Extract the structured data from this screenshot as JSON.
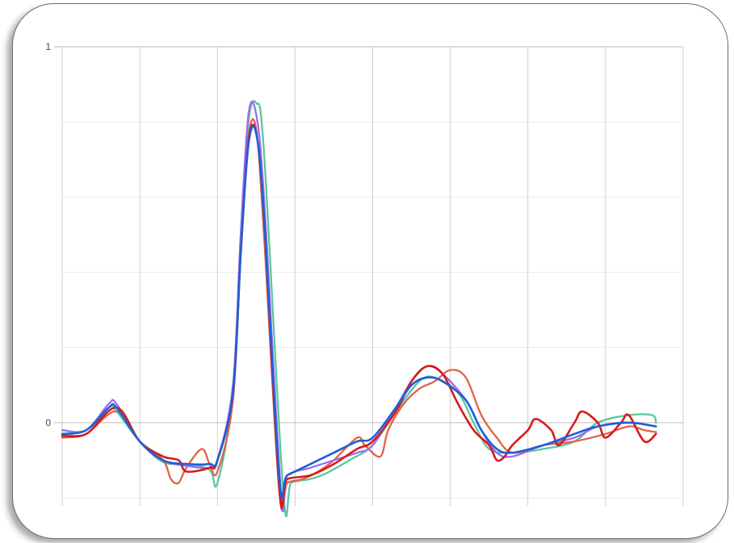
{
  "chart_data": {
    "type": "line",
    "title": "",
    "xlabel": "",
    "ylabel": "",
    "xlim": [
      0,
      8
    ],
    "ylim": [
      -0.2,
      1
    ],
    "y_ticks": [
      {
        "value": 0,
        "label": "0"
      },
      {
        "value": 1,
        "label": "1"
      }
    ],
    "y_minor_gridlines": [
      -0.2,
      0.2,
      0.4,
      0.6,
      0.8
    ],
    "x_gridlines": [
      0,
      1,
      2,
      3,
      4,
      5,
      6,
      7,
      8
    ],
    "grid": true,
    "legend": "none",
    "series": [
      {
        "color": "#5cc69c",
        "x": [
          0,
          0.31,
          0.6,
          0.7,
          1.0,
          1.3,
          1.6,
          1.9,
          2.0,
          2.2,
          2.3,
          2.4,
          2.5,
          2.6,
          2.85,
          2.95,
          3.2,
          3.4,
          3.7,
          4.0,
          4.3,
          4.6,
          4.8,
          5.1,
          5.3,
          5.5,
          5.8,
          6.2,
          6.6,
          6.9,
          7.3,
          7.6,
          7.65
        ],
        "y": [
          -0.03,
          -0.03,
          0.04,
          0.03,
          -0.05,
          -0.105,
          -0.11,
          -0.125,
          -0.16,
          0.08,
          0.5,
          0.8,
          0.85,
          0.72,
          -0.19,
          -0.16,
          -0.15,
          -0.135,
          -0.1,
          -0.06,
          0.03,
          0.11,
          0.12,
          0.08,
          0.0,
          -0.07,
          -0.08,
          -0.07,
          -0.05,
          -0.0,
          0.02,
          0.02,
          0.0
        ]
      },
      {
        "color": "#e0624a",
        "x": [
          0,
          0.31,
          0.7,
          1.0,
          1.3,
          1.4,
          1.5,
          1.6,
          1.8,
          1.9,
          2.0,
          2.2,
          2.3,
          2.4,
          2.5,
          2.6,
          2.8,
          2.9,
          3.1,
          3.3,
          3.5,
          3.8,
          3.9,
          4.1,
          4.2,
          4.4,
          4.6,
          4.8,
          5.0,
          5.2,
          5.4,
          5.6,
          5.8,
          6.2,
          6.6,
          7.0,
          7.3,
          7.5,
          7.65
        ],
        "y": [
          -0.04,
          -0.03,
          0.03,
          -0.05,
          -0.1,
          -0.15,
          -0.16,
          -0.12,
          -0.07,
          -0.11,
          -0.13,
          0.06,
          0.45,
          0.76,
          0.78,
          0.5,
          -0.19,
          -0.16,
          -0.15,
          -0.13,
          -0.1,
          -0.04,
          -0.06,
          -0.09,
          -0.02,
          0.05,
          0.09,
          0.11,
          0.14,
          0.12,
          0.02,
          -0.04,
          -0.08,
          -0.06,
          -0.05,
          -0.03,
          -0.01,
          -0.02,
          -0.025
        ]
      },
      {
        "color": "#9b6bf0",
        "x": [
          0,
          0.31,
          0.6,
          0.7,
          1.0,
          1.3,
          1.6,
          1.9,
          2.0,
          2.2,
          2.3,
          2.4,
          2.5,
          2.6,
          2.82,
          2.9,
          3.2,
          3.5,
          3.8,
          4.0,
          4.3,
          4.5,
          4.7,
          4.9,
          5.2,
          5.4,
          5.6,
          5.8,
          6.2,
          6.6,
          6.9,
          7.3,
          7.65
        ],
        "y": [
          -0.02,
          -0.02,
          0.05,
          0.05,
          -0.05,
          -0.1,
          -0.115,
          -0.12,
          -0.1,
          0.1,
          0.5,
          0.82,
          0.82,
          0.6,
          -0.19,
          -0.14,
          -0.12,
          -0.1,
          -0.08,
          -0.06,
          0.04,
          0.11,
          0.15,
          0.13,
          0.06,
          -0.02,
          -0.08,
          -0.09,
          -0.06,
          -0.04,
          -0.01,
          0.0,
          -0.01
        ]
      },
      {
        "color": "#d81a1a",
        "x": [
          0,
          0.31,
          0.7,
          1.0,
          1.3,
          1.5,
          1.6,
          1.9,
          2.0,
          2.2,
          2.3,
          2.4,
          2.5,
          2.6,
          2.8,
          2.9,
          3.2,
          3.5,
          3.8,
          4.0,
          4.3,
          4.5,
          4.7,
          4.9,
          5.1,
          5.3,
          5.5,
          5.6,
          5.7,
          5.8,
          6.0,
          6.1,
          6.3,
          6.4,
          6.6,
          6.7,
          6.9,
          7.0,
          7.2,
          7.3,
          7.5,
          7.65
        ],
        "y": [
          -0.035,
          -0.03,
          0.04,
          -0.05,
          -0.09,
          -0.1,
          -0.13,
          -0.12,
          -0.1,
          0.08,
          0.45,
          0.75,
          0.77,
          0.55,
          -0.18,
          -0.15,
          -0.14,
          -0.11,
          -0.07,
          -0.05,
          0.03,
          0.11,
          0.15,
          0.13,
          0.05,
          -0.02,
          -0.06,
          -0.1,
          -0.09,
          -0.06,
          -0.02,
          0.01,
          -0.02,
          -0.06,
          0.0,
          0.03,
          0.0,
          -0.04,
          0.0,
          0.02,
          -0.05,
          -0.03
        ]
      },
      {
        "color": "#1f5fd6",
        "x": [
          0,
          0.31,
          0.6,
          0.7,
          1.0,
          1.3,
          1.6,
          1.9,
          2.0,
          2.2,
          2.3,
          2.4,
          2.5,
          2.6,
          2.8,
          2.9,
          3.2,
          3.5,
          3.8,
          4.0,
          4.3,
          4.5,
          4.7,
          4.9,
          5.2,
          5.4,
          5.6,
          5.8,
          6.2,
          6.6,
          6.9,
          7.3,
          7.65
        ],
        "y": [
          -0.03,
          -0.02,
          0.04,
          0.04,
          -0.05,
          -0.1,
          -0.11,
          -0.11,
          -0.1,
          0.08,
          0.45,
          0.74,
          0.77,
          0.55,
          -0.15,
          -0.14,
          -0.11,
          -0.08,
          -0.05,
          -0.04,
          0.04,
          0.1,
          0.12,
          0.11,
          0.06,
          -0.02,
          -0.07,
          -0.08,
          -0.06,
          -0.03,
          -0.01,
          0.0,
          -0.01
        ]
      }
    ]
  }
}
